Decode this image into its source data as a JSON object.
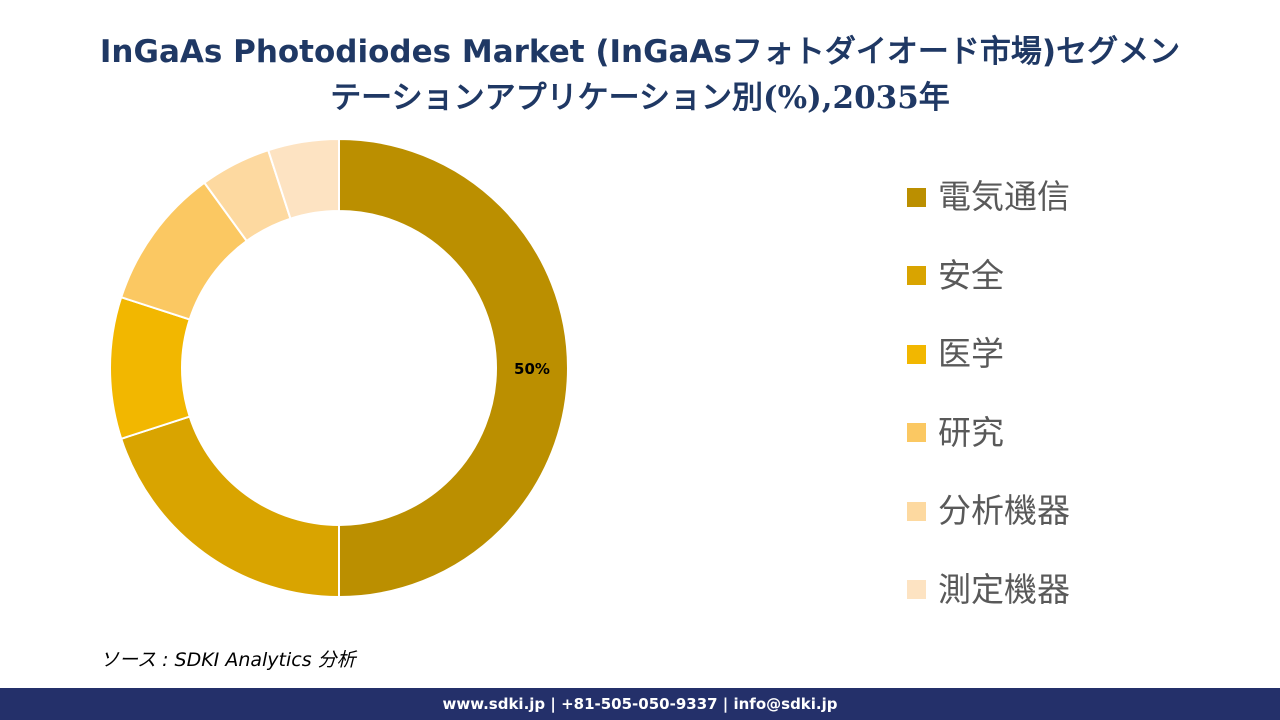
{
  "title": {
    "line1": "InGaAs Photodiodes Market (InGaAsフォトダイオード市場)セグメン",
    "line2": "テーションアプリケーション別(%),2035年"
  },
  "chart_data": {
    "type": "pie",
    "donut": true,
    "categories": [
      "電気通信",
      "安全",
      "医学",
      "研究",
      "分析機器",
      "測定機器"
    ],
    "values": [
      50,
      20,
      10,
      10,
      5,
      5
    ],
    "colors": [
      "#bb8f00",
      "#d9a400",
      "#f2b700",
      "#fbc862",
      "#fdd9a0",
      "#fde3c2"
    ],
    "data_labels": [
      "50%",
      "",
      "",
      "",
      "",
      ""
    ],
    "legend_position": "right"
  },
  "source": "ソース : SDKI Analytics 分析",
  "footer": "www.sdki.jp | +81-505-050-9337 | info@sdki.jp"
}
